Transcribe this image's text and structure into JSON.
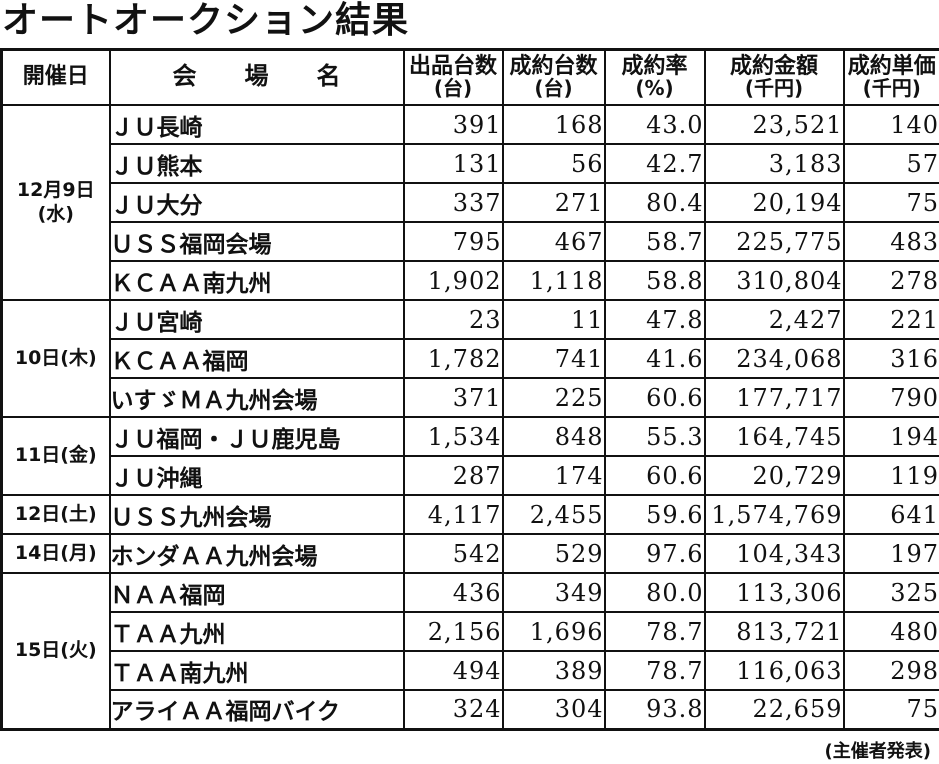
{
  "title": "オートオークション結果",
  "footer_note": "(主催者発表)",
  "colors": {
    "text": "#111111",
    "border": "#111111",
    "background": "#ffffff"
  },
  "table": {
    "columns": [
      {
        "label": "開催日",
        "sub": ""
      },
      {
        "label": "会　　場　　名",
        "sub": ""
      },
      {
        "label": "出品台数",
        "sub": "(台)"
      },
      {
        "label": "成約台数",
        "sub": "(台)"
      },
      {
        "label": "成約率",
        "sub": "(%)"
      },
      {
        "label": "成約金額",
        "sub": "(千円)"
      },
      {
        "label": "成約単価",
        "sub": "(千円)"
      }
    ],
    "groups": [
      {
        "date_line1": "12月9日",
        "date_line2": "(水)",
        "rows": [
          {
            "venue": "ＪＵ長崎",
            "listed": "391",
            "sold": "168",
            "rate": "43.0",
            "amount": "23,521",
            "unit": "140"
          },
          {
            "venue": "ＪＵ熊本",
            "listed": "131",
            "sold": "56",
            "rate": "42.7",
            "amount": "3,183",
            "unit": "57"
          },
          {
            "venue": "ＪＵ大分",
            "listed": "337",
            "sold": "271",
            "rate": "80.4",
            "amount": "20,194",
            "unit": "75"
          },
          {
            "venue": "ＵＳＳ福岡会場",
            "listed": "795",
            "sold": "467",
            "rate": "58.7",
            "amount": "225,775",
            "unit": "483"
          },
          {
            "venue": "ＫＣＡＡ南九州",
            "listed": "1,902",
            "sold": "1,118",
            "rate": "58.8",
            "amount": "310,804",
            "unit": "278"
          }
        ]
      },
      {
        "date_line1": "10日(木)",
        "date_line2": "",
        "rows": [
          {
            "venue": "ＪＵ宮崎",
            "listed": "23",
            "sold": "11",
            "rate": "47.8",
            "amount": "2,427",
            "unit": "221"
          },
          {
            "venue": "ＫＣＡＡ福岡",
            "listed": "1,782",
            "sold": "741",
            "rate": "41.6",
            "amount": "234,068",
            "unit": "316"
          },
          {
            "venue": "いすゞＭＡ九州会場",
            "listed": "371",
            "sold": "225",
            "rate": "60.6",
            "amount": "177,717",
            "unit": "790"
          }
        ]
      },
      {
        "date_line1": "11日(金)",
        "date_line2": "",
        "rows": [
          {
            "venue": "ＪＵ福岡・ＪＵ鹿児島",
            "listed": "1,534",
            "sold": "848",
            "rate": "55.3",
            "amount": "164,745",
            "unit": "194"
          },
          {
            "venue": "ＪＵ沖縄",
            "listed": "287",
            "sold": "174",
            "rate": "60.6",
            "amount": "20,729",
            "unit": "119"
          }
        ]
      },
      {
        "date_line1": "12日(土)",
        "date_line2": "",
        "rows": [
          {
            "venue": "ＵＳＳ九州会場",
            "listed": "4,117",
            "sold": "2,455",
            "rate": "59.6",
            "amount": "1,574,769",
            "unit": "641"
          }
        ]
      },
      {
        "date_line1": "14日(月)",
        "date_line2": "",
        "rows": [
          {
            "venue": "ホンダＡＡ九州会場",
            "listed": "542",
            "sold": "529",
            "rate": "97.6",
            "amount": "104,343",
            "unit": "197"
          }
        ]
      },
      {
        "date_line1": "15日(火)",
        "date_line2": "",
        "rows": [
          {
            "venue": "ＮＡＡ福岡",
            "listed": "436",
            "sold": "349",
            "rate": "80.0",
            "amount": "113,306",
            "unit": "325"
          },
          {
            "venue": "ＴＡＡ九州",
            "listed": "2,156",
            "sold": "1,696",
            "rate": "78.7",
            "amount": "813,721",
            "unit": "480"
          },
          {
            "venue": "ＴＡＡ南九州",
            "listed": "494",
            "sold": "389",
            "rate": "78.7",
            "amount": "116,063",
            "unit": "298"
          },
          {
            "venue": "アライＡＡ福岡バイク",
            "listed": "324",
            "sold": "304",
            "rate": "93.8",
            "amount": "22,659",
            "unit": "75"
          }
        ]
      }
    ]
  }
}
